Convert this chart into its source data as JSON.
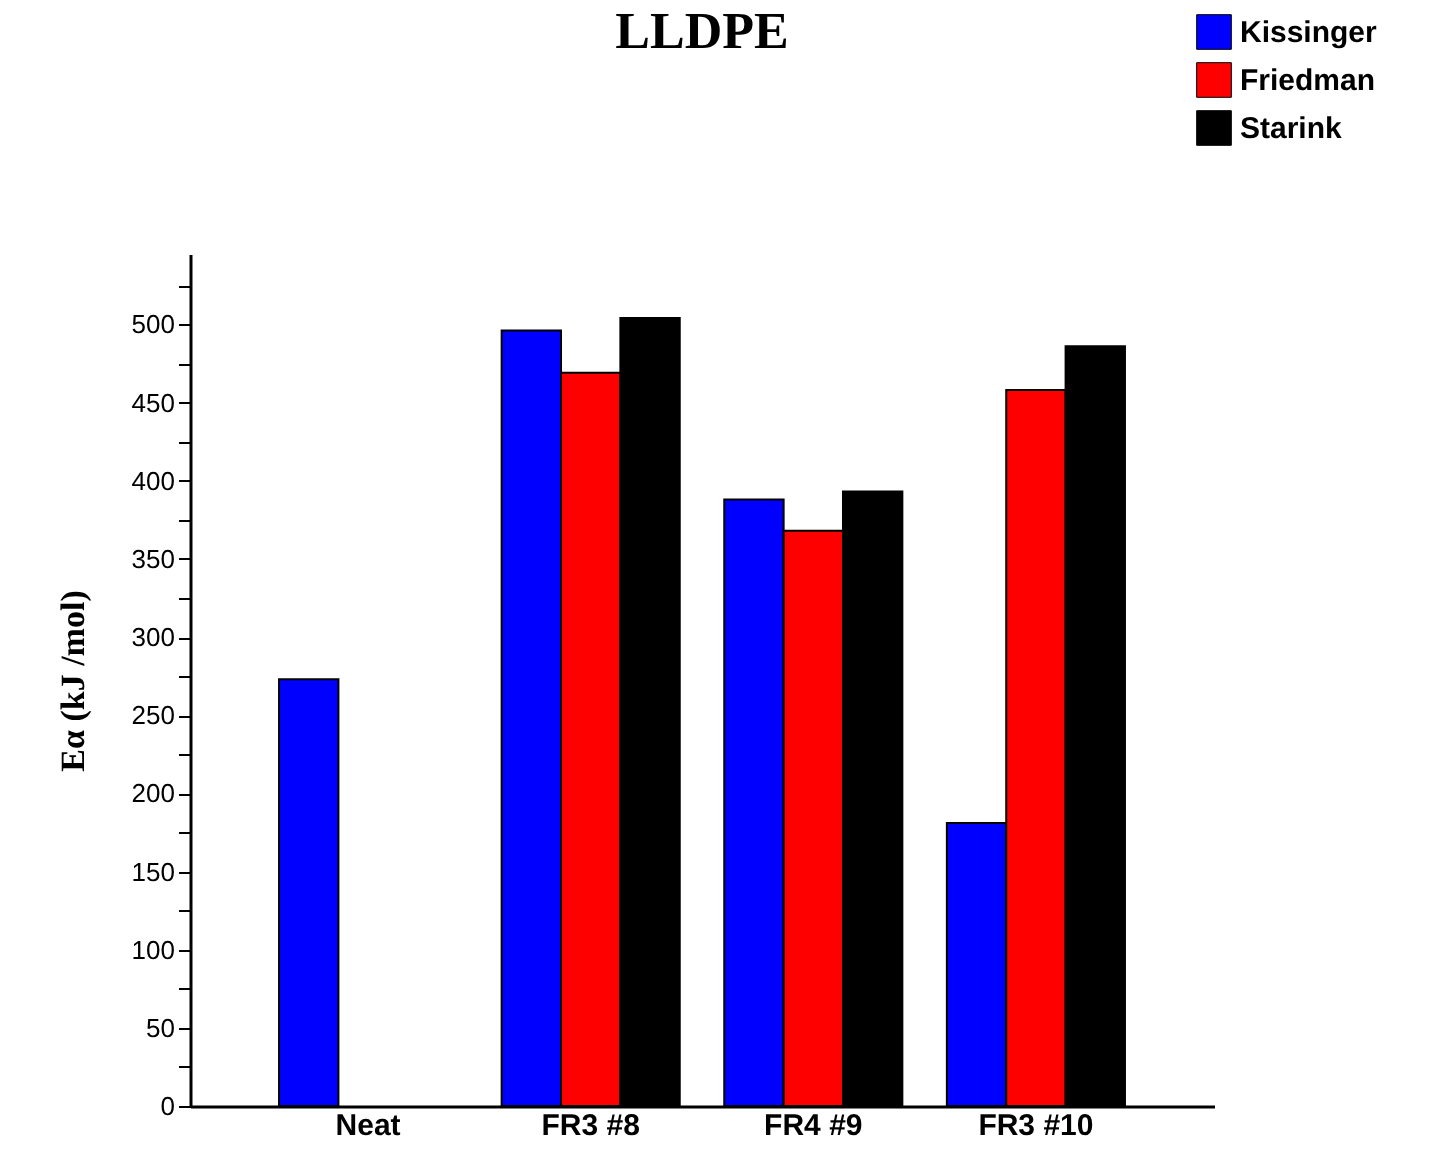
{
  "chart_data": {
    "type": "bar",
    "title": "LLDPE",
    "ylabel": "Eα (kJ /mol)",
    "categories": [
      "Neat",
      "FR3 #8",
      "FR4 #9",
      "FR3 #10"
    ],
    "series": [
      {
        "name": "Kissinger",
        "color": "#0000ff",
        "values": [
          273,
          496,
          388,
          181
        ]
      },
      {
        "name": "Friedman",
        "color": "#ff0000",
        "values": [
          null,
          469,
          368,
          458
        ]
      },
      {
        "name": "Starink",
        "color": "#000000",
        "values": [
          null,
          504,
          393,
          486
        ]
      }
    ],
    "ylim": [
      0,
      545
    ],
    "yticks": [
      0,
      {
        "value": 25,
        "label": null
      },
      50,
      {
        "value": 75,
        "label": null
      },
      100,
      {
        "value": 125,
        "label": null
      },
      150,
      {
        "value": 175,
        "label": null
      },
      200,
      {
        "value": 225,
        "label": null
      },
      250,
      {
        "value": 275,
        "label": null
      },
      300,
      {
        "value": 325,
        "label": null
      },
      350,
      {
        "value": 375,
        "label": null
      },
      400,
      {
        "value": 425,
        "label": null
      },
      450,
      {
        "value": 475,
        "label": null
      },
      500,
      {
        "value": 525,
        "label": null
      }
    ],
    "grid": false,
    "legend": "top right"
  }
}
